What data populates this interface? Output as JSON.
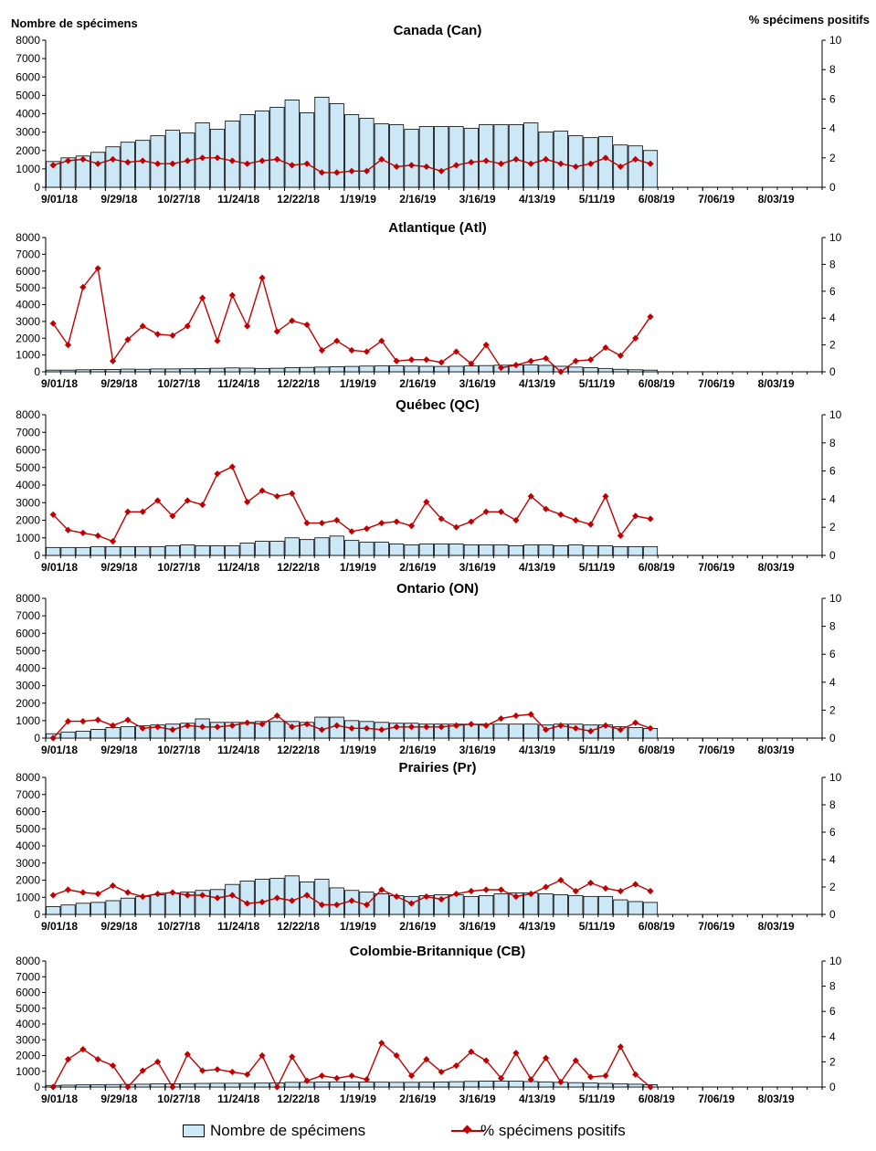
{
  "header": {
    "left_axis_title": "Nombre de spécimens",
    "right_axis_title": "% spécimens positifs"
  },
  "legend": {
    "bars_label": "Nombre de spécimens",
    "line_label": "% spécimens positifs"
  },
  "colors": {
    "bar_fill": "#cce8f6",
    "bar_stroke": "#000000",
    "line": "#c00000"
  },
  "chart_data": [
    {
      "type": "bar+line",
      "title": "Canada (Can)",
      "x_ticks": [
        "9/01/18",
        "9/29/18",
        "10/27/18",
        "11/24/18",
        "12/22/18",
        "1/19/19",
        "2/16/19",
        "3/16/19",
        "4/13/19",
        "5/11/19",
        "6/08/19",
        "7/06/19",
        "8/03/19"
      ],
      "weeks_total": 52,
      "ylim_left": [
        0,
        8000
      ],
      "yticks_left": [
        0,
        1000,
        2000,
        3000,
        4000,
        5000,
        6000,
        7000,
        8000
      ],
      "ylim_right": [
        0,
        10
      ],
      "yticks_right": [
        0,
        2,
        4,
        6,
        8,
        10
      ],
      "series": [
        {
          "name": "Nombre de spécimens",
          "axis": "left",
          "kind": "bar",
          "values": [
            1400,
            1600,
            1700,
            1900,
            2200,
            2450,
            2550,
            2800,
            3100,
            2950,
            3500,
            3150,
            3600,
            3950,
            4150,
            4350,
            4750,
            4050,
            4900,
            4550,
            3950,
            3750,
            3450,
            3400,
            3150,
            3300,
            3300,
            3300,
            3200,
            3400,
            3400,
            3400,
            3500,
            3000,
            3050,
            2800,
            2700,
            2750,
            2300,
            2250,
            2000
          ]
        },
        {
          "name": "% spécimens positifs",
          "axis": "right",
          "kind": "line",
          "values": [
            1.5,
            1.8,
            1.9,
            1.6,
            1.9,
            1.7,
            1.8,
            1.6,
            1.6,
            1.8,
            2.0,
            2.0,
            1.8,
            1.6,
            1.8,
            1.9,
            1.5,
            1.6,
            1.0,
            1.0,
            1.1,
            1.1,
            1.9,
            1.4,
            1.5,
            1.4,
            1.1,
            1.5,
            1.7,
            1.8,
            1.6,
            1.9,
            1.6,
            1.9,
            1.6,
            1.4,
            1.6,
            2.0,
            1.4,
            1.9,
            1.6
          ]
        }
      ]
    },
    {
      "type": "bar+line",
      "title": "Atlantique (Atl)",
      "x_ticks": [
        "9/01/18",
        "9/29/18",
        "10/27/18",
        "11/24/18",
        "12/22/18",
        "1/19/19",
        "2/16/19",
        "3/16/19",
        "4/13/19",
        "5/11/19",
        "6/08/19",
        "7/06/19",
        "8/03/19"
      ],
      "weeks_total": 52,
      "ylim_left": [
        0,
        8000
      ],
      "yticks_left": [
        0,
        1000,
        2000,
        3000,
        4000,
        5000,
        6000,
        7000,
        8000
      ],
      "ylim_right": [
        0,
        10
      ],
      "yticks_right": [
        0,
        2,
        4,
        6,
        8,
        10
      ],
      "series": [
        {
          "name": "Nombre de spécimens",
          "axis": "left",
          "kind": "bar",
          "values": [
            100,
            100,
            120,
            130,
            140,
            160,
            150,
            170,
            170,
            180,
            190,
            210,
            230,
            220,
            200,
            210,
            250,
            260,
            280,
            300,
            320,
            340,
            350,
            360,
            340,
            330,
            320,
            330,
            350,
            370,
            390,
            400,
            420,
            380,
            330,
            280,
            250,
            200,
            150,
            120,
            100
          ]
        },
        {
          "name": "% spécimens positifs",
          "axis": "right",
          "kind": "line",
          "values": [
            3.6,
            2.0,
            6.3,
            7.7,
            0.8,
            2.4,
            3.4,
            2.8,
            2.7,
            3.4,
            5.5,
            2.3,
            5.7,
            3.4,
            7.0,
            3.0,
            3.8,
            3.5,
            1.6,
            2.3,
            1.6,
            1.5,
            2.3,
            0.8,
            0.9,
            0.9,
            0.7,
            1.5,
            0.6,
            2.0,
            0.3,
            0.5,
            0.8,
            1.0,
            0.0,
            0.8,
            0.9,
            1.8,
            1.2,
            2.5,
            4.1
          ]
        }
      ]
    },
    {
      "type": "bar+line",
      "title": "Québec (QC)",
      "x_ticks": [
        "9/01/18",
        "9/29/18",
        "10/27/18",
        "11/24/18",
        "12/22/18",
        "1/19/19",
        "2/16/19",
        "3/16/19",
        "4/13/19",
        "5/11/19",
        "6/08/19",
        "7/06/19",
        "8/03/19"
      ],
      "weeks_total": 52,
      "ylim_left": [
        0,
        8000
      ],
      "yticks_left": [
        0,
        1000,
        2000,
        3000,
        4000,
        5000,
        6000,
        7000,
        8000
      ],
      "ylim_right": [
        0,
        10
      ],
      "yticks_right": [
        0,
        2,
        4,
        6,
        8,
        10
      ],
      "series": [
        {
          "name": "Nombre de spécimens",
          "axis": "left",
          "kind": "bar",
          "values": [
            450,
            450,
            450,
            500,
            500,
            500,
            500,
            500,
            550,
            600,
            550,
            550,
            550,
            700,
            800,
            800,
            1000,
            900,
            1000,
            1100,
            850,
            750,
            750,
            650,
            600,
            650,
            650,
            650,
            600,
            600,
            600,
            550,
            600,
            600,
            550,
            600,
            550,
            550,
            500,
            500,
            500
          ]
        },
        {
          "name": "% spécimens positifs",
          "axis": "right",
          "kind": "line",
          "values": [
            2.9,
            1.8,
            1.6,
            1.4,
            1.0,
            3.1,
            3.1,
            3.9,
            2.8,
            3.9,
            3.6,
            5.8,
            6.3,
            3.8,
            4.6,
            4.2,
            4.4,
            2.3,
            2.3,
            2.5,
            1.7,
            1.9,
            2.3,
            2.4,
            2.1,
            3.8,
            2.6,
            2.0,
            2.4,
            3.1,
            3.1,
            2.5,
            4.2,
            3.3,
            2.9,
            2.5,
            2.2,
            4.2,
            1.4,
            2.8,
            2.6
          ]
        }
      ]
    },
    {
      "type": "bar+line",
      "title": "Ontario (ON)",
      "x_ticks": [
        "9/01/18",
        "9/29/18",
        "10/27/18",
        "11/24/18",
        "12/22/18",
        "1/19/19",
        "2/16/19",
        "3/16/19",
        "4/13/19",
        "5/11/19",
        "6/08/19",
        "7/06/19",
        "8/03/19"
      ],
      "weeks_total": 52,
      "ylim_left": [
        0,
        8000
      ],
      "yticks_left": [
        0,
        1000,
        2000,
        3000,
        4000,
        5000,
        6000,
        7000,
        8000
      ],
      "ylim_right": [
        0,
        10
      ],
      "yticks_right": [
        0,
        2,
        4,
        6,
        8,
        10
      ],
      "series": [
        {
          "name": "Nombre de spécimens",
          "axis": "left",
          "kind": "bar",
          "values": [
            250,
            350,
            400,
            500,
            600,
            650,
            700,
            750,
            800,
            850,
            1100,
            900,
            900,
            900,
            950,
            950,
            950,
            900,
            1200,
            1200,
            1000,
            950,
            900,
            850,
            850,
            800,
            800,
            800,
            800,
            800,
            800,
            800,
            800,
            750,
            800,
            800,
            750,
            750,
            650,
            600,
            550
          ]
        },
        {
          "name": "% spécimens positifs",
          "axis": "right",
          "kind": "line",
          "values": [
            0.0,
            1.2,
            1.2,
            1.3,
            0.9,
            1.3,
            0.7,
            0.8,
            0.6,
            0.9,
            0.8,
            0.8,
            0.9,
            1.1,
            1.0,
            1.6,
            0.8,
            1.0,
            0.6,
            0.9,
            0.7,
            0.7,
            0.6,
            0.8,
            0.8,
            0.8,
            0.8,
            0.9,
            1.0,
            0.9,
            1.4,
            1.6,
            1.7,
            0.6,
            0.9,
            0.7,
            0.5,
            0.9,
            0.6,
            1.1,
            0.7
          ]
        }
      ]
    },
    {
      "type": "bar+line",
      "title": "Prairies (Pr)",
      "x_ticks": [
        "9/01/18",
        "9/29/18",
        "10/27/18",
        "11/24/18",
        "12/22/18",
        "1/19/19",
        "2/16/19",
        "3/16/19",
        "4/13/19",
        "5/11/19",
        "6/08/19",
        "7/06/19",
        "8/03/19"
      ],
      "weeks_total": 52,
      "ylim_left": [
        0,
        8000
      ],
      "yticks_left": [
        0,
        1000,
        2000,
        3000,
        4000,
        5000,
        6000,
        7000,
        8000
      ],
      "ylim_right": [
        0,
        10
      ],
      "yticks_right": [
        0,
        2,
        4,
        6,
        8,
        10
      ],
      "series": [
        {
          "name": "Nombre de spécimens",
          "axis": "left",
          "kind": "bar",
          "values": [
            450,
            550,
            650,
            700,
            800,
            950,
            1050,
            1150,
            1250,
            1300,
            1400,
            1450,
            1750,
            1950,
            2050,
            2100,
            2250,
            1900,
            2050,
            1550,
            1400,
            1300,
            1200,
            1100,
            1050,
            1100,
            1150,
            1150,
            1050,
            1100,
            1200,
            1250,
            1250,
            1200,
            1150,
            1100,
            1050,
            1050,
            850,
            750,
            700
          ]
        },
        {
          "name": "% spécimens positifs",
          "axis": "right",
          "kind": "line",
          "values": [
            1.4,
            1.8,
            1.6,
            1.5,
            2.1,
            1.6,
            1.3,
            1.5,
            1.6,
            1.4,
            1.4,
            1.2,
            1.4,
            0.8,
            0.9,
            1.2,
            1.0,
            1.4,
            0.7,
            0.7,
            1.0,
            0.7,
            1.8,
            1.3,
            0.8,
            1.3,
            1.1,
            1.5,
            1.7,
            1.8,
            1.8,
            1.3,
            1.5,
            2.0,
            2.5,
            1.7,
            2.3,
            1.9,
            1.7,
            2.2,
            1.7
          ]
        }
      ]
    },
    {
      "type": "bar+line",
      "title": "Colombie-Britannique (CB)",
      "x_ticks": [
        "9/01/18",
        "9/29/18",
        "10/27/18",
        "11/24/18",
        "12/22/18",
        "1/19/19",
        "2/16/19",
        "3/16/19",
        "4/13/19",
        "5/11/19",
        "6/08/19",
        "7/06/19",
        "8/03/19"
      ],
      "weeks_total": 52,
      "ylim_left": [
        0,
        8000
      ],
      "yticks_left": [
        0,
        1000,
        2000,
        3000,
        4000,
        5000,
        6000,
        7000,
        8000
      ],
      "ylim_right": [
        0,
        10
      ],
      "yticks_right": [
        0,
        2,
        4,
        6,
        8,
        10
      ],
      "series": [
        {
          "name": "Nombre de spécimens",
          "axis": "left",
          "kind": "bar",
          "values": [
            100,
            120,
            140,
            150,
            160,
            170,
            180,
            200,
            210,
            220,
            230,
            240,
            240,
            240,
            250,
            260,
            300,
            300,
            320,
            330,
            330,
            320,
            310,
            300,
            300,
            310,
            320,
            340,
            360,
            380,
            380,
            370,
            350,
            330,
            300,
            280,
            260,
            230,
            200,
            180,
            150
          ]
        },
        {
          "name": "% spécimens positifs",
          "axis": "right",
          "kind": "line",
          "values": [
            0.0,
            2.2,
            3.0,
            2.2,
            1.7,
            0.0,
            1.3,
            2.0,
            0.0,
            2.6,
            1.3,
            1.4,
            1.2,
            1.0,
            2.5,
            0.0,
            2.4,
            0.5,
            0.9,
            0.7,
            0.9,
            0.6,
            3.5,
            2.5,
            0.9,
            2.2,
            1.2,
            1.7,
            2.8,
            2.1,
            0.7,
            2.7,
            0.6,
            2.3,
            0.4,
            2.1,
            0.8,
            0.9,
            3.2,
            1.0,
            0.0
          ]
        }
      ]
    }
  ]
}
